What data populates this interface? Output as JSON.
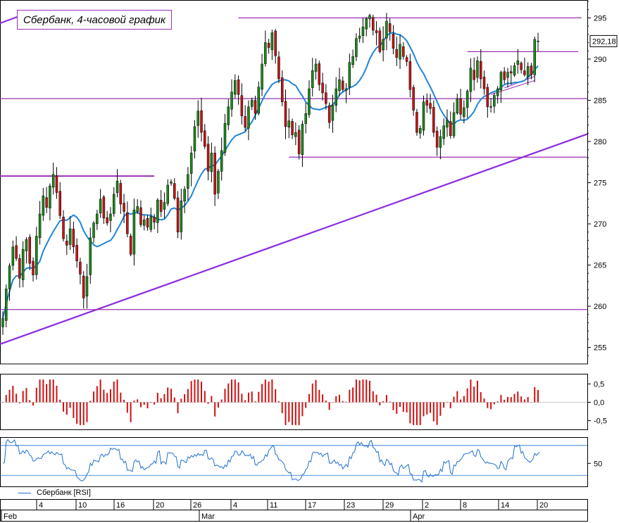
{
  "chart_data": [
    {
      "type": "candlestick",
      "title": "Сбербанк, 4-часовой график",
      "ylim": [
        253,
        297
      ],
      "y_ticks": [
        "255",
        "260",
        "265",
        "270",
        "275",
        "280",
        "285",
        "290",
        "295"
      ],
      "last_price": "292,18",
      "colors": {
        "up": "#1a8a1a",
        "down": "#c81414",
        "wick": "#000000",
        "sma": "#1f86d8",
        "levels": "#9b30b4",
        "trendline": "#8a2be2"
      },
      "moving_average": "blue smoothed line",
      "horizontal_levels": [
        {
          "price": 295.0,
          "from_index": 70,
          "to_index": 166
        },
        {
          "price": 290.9,
          "from_index": 138,
          "to_index": 166
        },
        {
          "price": 285.2,
          "from_index": 0,
          "to_index": 166
        },
        {
          "price": 278.1,
          "from_index": 85,
          "to_index": 166
        },
        {
          "price": 275.8,
          "from_index": 0,
          "to_index": 45
        },
        {
          "price": 259.6,
          "from_index": 0,
          "to_index": 166
        }
      ],
      "trendline": {
        "from_index": 0,
        "from_price": 255.4,
        "to_index": 166,
        "to_price": 280.9
      },
      "triangle_lines": [
        {
          "from_index": 145,
          "from_price": 285.7,
          "to_index": 158,
          "to_price": 287.4
        },
        {
          "from_index": 149,
          "from_price": 286.5,
          "to_index": 158,
          "to_price": 287.9
        }
      ],
      "closes": [
        258.5,
        262.1,
        264.9,
        267.2,
        265.8,
        263.4,
        266.9,
        268.1,
        265.2,
        263.8,
        268.5,
        271.2,
        273.4,
        272.0,
        274.6,
        276.0,
        273.8,
        271.0,
        268.2,
        267.4,
        269.4,
        267.2,
        265.5,
        263.9,
        261.0,
        263.6,
        268.3,
        270.1,
        271.2,
        273.0,
        270.7,
        270.1,
        271.2,
        273.6,
        275.2,
        272.4,
        271.5,
        268.8,
        266.3,
        271.7,
        272.1,
        269.9,
        270.5,
        269.6,
        270.9,
        270.2,
        272.9,
        271.5,
        272.6,
        274.7,
        275.1,
        273.1,
        269.0,
        272.8,
        274.2,
        276.0,
        278.6,
        281.8,
        283.7,
        281.1,
        279.4,
        276.4,
        278.6,
        273.6,
        276.4,
        278.9,
        282.2,
        284.2,
        286.0,
        287.4,
        285.7,
        283.1,
        281.7,
        284.2,
        285.0,
        283.4,
        286.6,
        289.4,
        292.0,
        291.4,
        293.2,
        290.4,
        287.6,
        284.8,
        281.8,
        282.5,
        280.8,
        281.1,
        278.5,
        282.1,
        283.4,
        286.4,
        288.6,
        289.4,
        286.9,
        285.9,
        284.6,
        282.3,
        284.4,
        286.4,
        287.5,
        286.3,
        286.4,
        289.6,
        290.3,
        292.5,
        292.8,
        293.9,
        294.9,
        295.3,
        293.5,
        293.2,
        290.9,
        292.4,
        294.6,
        293.3,
        291.3,
        290.2,
        291.8,
        290.3,
        289.7,
        286.3,
        283.8,
        281.1,
        281.6,
        284.8,
        284.4,
        284.0,
        281.1,
        279.3,
        280.6,
        281.9,
        282.6,
        280.7,
        283.5,
        285.2,
        283.3,
        284.1,
        286.1,
        288.9,
        287.5,
        289.8,
        287.6,
        286.4,
        284.2,
        284.2,
        285.6,
        286.4,
        288.4,
        287.5,
        288.4,
        288.3,
        289.2,
        289.8,
        288.7,
        288.1,
        289.1,
        288.1,
        292.4,
        292.2
      ],
      "subcharts": [
        {
          "name": "oscillator",
          "y_ticks": [
            "0,5",
            "0,0",
            "-0,5"
          ],
          "ylim": [
            -0.7,
            0.7
          ]
        },
        {
          "name": "rsi",
          "series_label": "Сбербанк [RSI]",
          "y_ticks": [
            "50"
          ],
          "ylim": [
            15,
            88
          ],
          "bands": [
            30,
            80
          ]
        }
      ],
      "x_axis": {
        "days": [
          "4",
          "10",
          "16",
          "20",
          "26",
          "4",
          "11",
          "17",
          "23",
          "29",
          "2",
          "8",
          "14",
          "20"
        ],
        "months": [
          "Feb",
          "Mar",
          "Apr"
        ]
      }
    }
  ]
}
